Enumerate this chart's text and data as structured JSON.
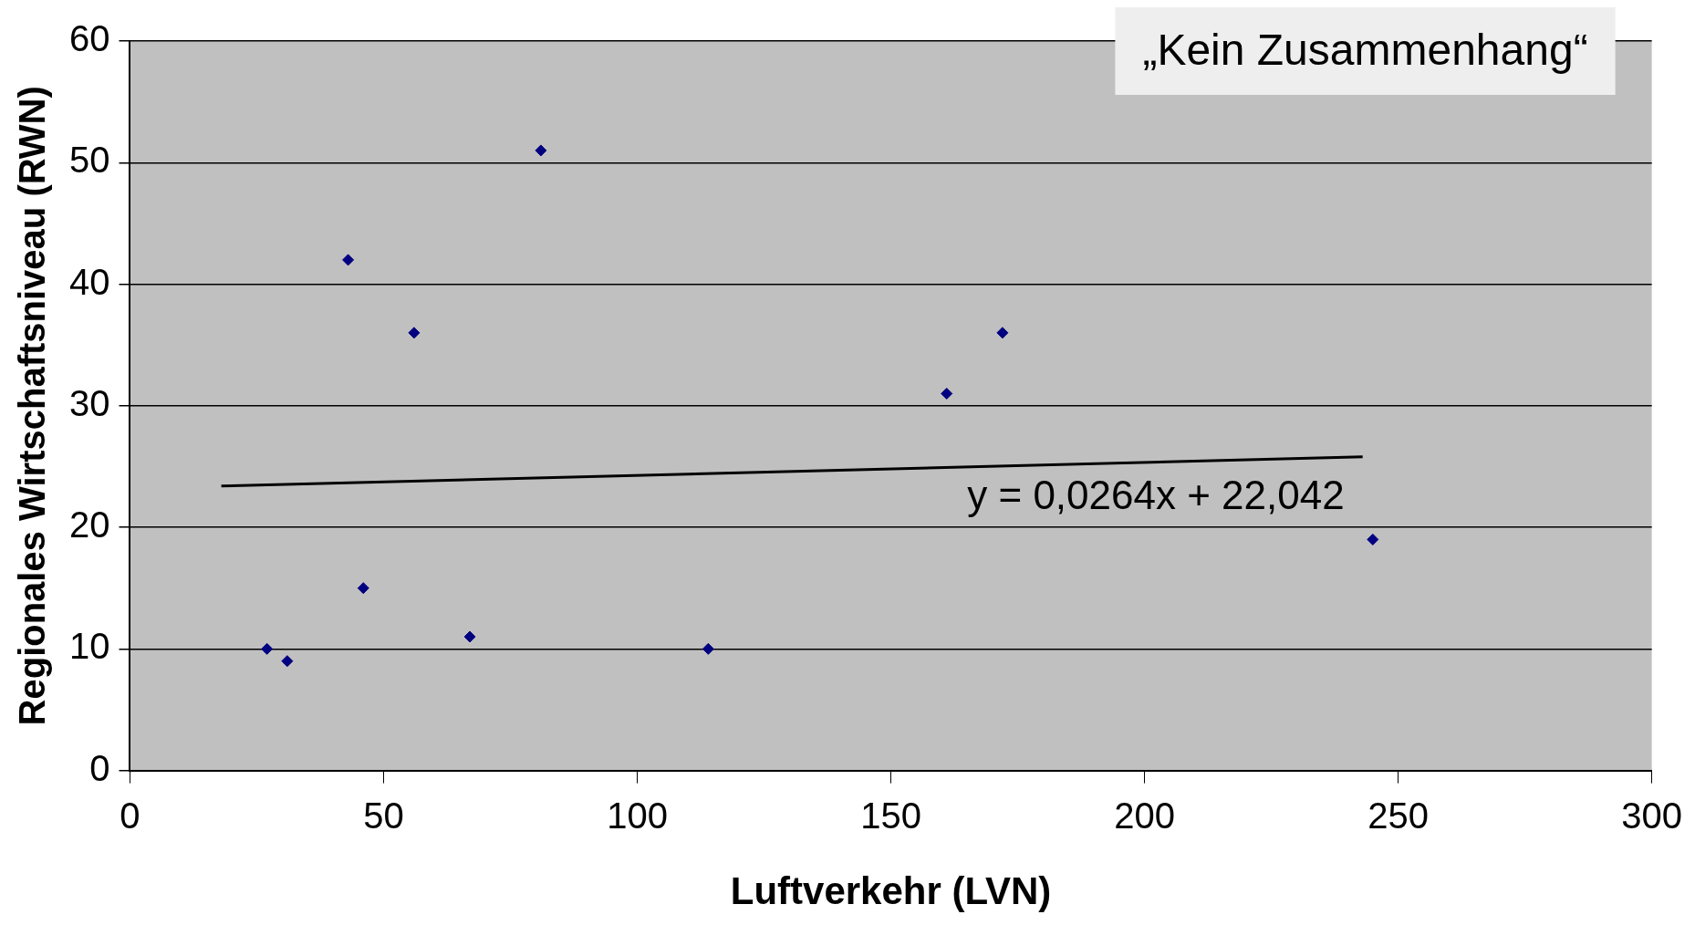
{
  "chart_data": {
    "type": "scatter",
    "title": "„Kein Zusammenhang“",
    "xlabel": "Luftverkehr (LVN)",
    "ylabel": "Regionales Wirtschaftsniveau (RWN)",
    "series": [
      {
        "color": "#000080",
        "marker": "diamond",
        "x": [
          27,
          31,
          43,
          46,
          56,
          67,
          81,
          114,
          161,
          172,
          245
        ],
        "values": [
          10,
          9,
          42,
          15,
          36,
          11,
          51,
          10,
          31,
          36,
          19
        ]
      },
      {
        "type": "line",
        "color": "#000000",
        "marker": "none",
        "line_style": "solid",
        "x": [
          18,
          243
        ],
        "values": [
          23.4,
          25.8
        ]
      }
    ],
    "annotations": [
      "y = 0,0264x + 22,042"
    ],
    "xlim": [
      0,
      300
    ],
    "xticks": [
      0,
      50,
      100,
      150,
      200,
      250,
      300
    ],
    "ylim": [
      0,
      60
    ],
    "yticks": [
      0,
      10,
      20,
      30,
      40,
      50,
      60
    ],
    "grid": "y",
    "legend": false
  }
}
